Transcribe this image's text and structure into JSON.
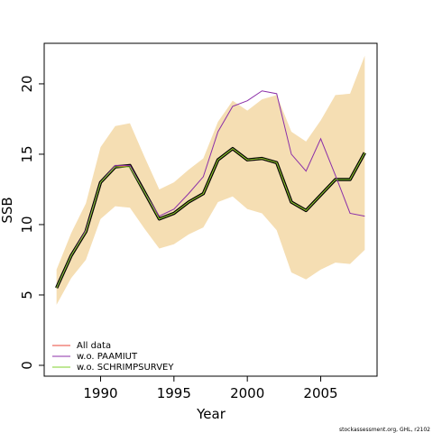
{
  "chart_data": {
    "type": "line",
    "x": [
      1987,
      1988,
      1989,
      1990,
      1991,
      1992,
      1993,
      1994,
      1995,
      1996,
      1997,
      1998,
      1999,
      2000,
      2001,
      2002,
      2003,
      2004,
      2005,
      2006,
      2007,
      2008
    ],
    "xlabel": "Year",
    "ylabel": "SSB",
    "xlim": [
      1986.16,
      2008.84
    ],
    "xticks": [
      1990,
      1995,
      2000,
      2005
    ],
    "ylim": [
      -0.77,
      22.88
    ],
    "yticks": [
      0,
      5,
      10,
      15,
      20
    ],
    "grid": false,
    "legend": "bottom-left",
    "line_outline": "#000000",
    "band": {
      "color": "#f5deb3",
      "upper": [
        6.8,
        9.4,
        11.5,
        15.5,
        17.0,
        17.2,
        14.8,
        12.5,
        13.0,
        13.9,
        14.7,
        17.3,
        18.8,
        18.1,
        18.9,
        19.2,
        16.6,
        15.9,
        17.4,
        19.2,
        19.3,
        22.0
      ],
      "lower": [
        4.3,
        6.2,
        7.5,
        10.4,
        11.3,
        11.2,
        9.7,
        8.3,
        8.6,
        9.3,
        9.8,
        11.6,
        12.0,
        11.1,
        10.8,
        9.6,
        6.6,
        6.1,
        6.8,
        7.3,
        7.2,
        8.2
      ]
    },
    "series": [
      {
        "name": "All data",
        "color": "#e8473a",
        "values": [
          5.5,
          7.8,
          9.5,
          13.0,
          14.1,
          14.2,
          12.3,
          10.4,
          10.8,
          11.6,
          12.2,
          14.6,
          15.4,
          14.6,
          14.7,
          14.4,
          11.6,
          11.0,
          12.1,
          13.2,
          13.2,
          15.1
        ]
      },
      {
        "name": "w.o. PAAMIUT",
        "color": "#8b2fa8",
        "values": [
          5.5,
          7.8,
          9.6,
          13.0,
          14.2,
          14.2,
          12.3,
          10.6,
          11.1,
          12.2,
          13.4,
          16.6,
          18.4,
          18.8,
          19.5,
          19.3,
          15.0,
          13.8,
          16.1,
          13.5,
          10.8,
          10.6
        ]
      },
      {
        "name": "w.o. SCHRIMPSURVEY",
        "color": "#7fd12b",
        "values": [
          5.5,
          7.8,
          9.5,
          13.0,
          14.1,
          14.1,
          12.3,
          10.4,
          10.8,
          11.6,
          12.2,
          14.6,
          15.4,
          14.6,
          14.7,
          14.4,
          11.6,
          11.0,
          12.1,
          13.2,
          13.2,
          15.1
        ]
      }
    ],
    "footnote": "stockassessment.org, GHL, r2102"
  }
}
